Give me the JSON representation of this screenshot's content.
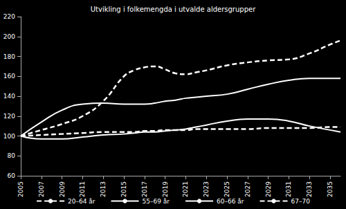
{
  "chart_data": {
    "type": "line",
    "title": "Utvikling i folkemengda i utvalde aldersgrupper",
    "x": [
      2005,
      2007,
      2009,
      2011,
      2013,
      2015,
      2016,
      2017,
      2018,
      2019,
      2020,
      2021,
      2022,
      2023,
      2025,
      2027,
      2029,
      2031,
      2033,
      2035,
      2036
    ],
    "series": [
      {
        "name": "20–64 år",
        "color": "#ffffff",
        "line_style": "dashed",
        "marker": "none",
        "values": [
          100,
          101,
          102,
          103,
          104,
          104,
          104,
          105,
          105,
          106,
          106,
          106,
          107,
          107,
          107,
          107,
          108,
          108,
          108,
          109,
          109
        ]
      },
      {
        "name": "55–69 år",
        "color": "#ffffff",
        "line_style": "solid",
        "marker": "none",
        "values": [
          100,
          114,
          126,
          132,
          133,
          132,
          132,
          132,
          133,
          135,
          136,
          138,
          139,
          140,
          142,
          147,
          152,
          156,
          158,
          158,
          158
        ]
      },
      {
        "name": "60–66 år",
        "color": "#ffffff",
        "line_style": "solid",
        "marker": "none",
        "values": [
          100,
          97,
          97,
          99,
          101,
          102,
          103,
          104,
          104,
          105,
          106,
          107,
          109,
          111,
          115,
          117,
          117,
          115,
          110,
          106,
          104
        ]
      },
      {
        "name": "67–70",
        "color": "#ffffff",
        "line_style": "dashed",
        "marker": "none",
        "values": [
          100,
          106,
          112,
          120,
          135,
          160,
          166,
          169,
          170,
          167,
          163,
          162,
          164,
          166,
          171,
          174,
          176,
          177,
          183,
          192,
          196
        ]
      }
    ],
    "xlim": [
      2005,
      2036
    ],
    "xticks": [
      2005,
      2007,
      2009,
      2011,
      2013,
      2015,
      2017,
      2019,
      2021,
      2023,
      2025,
      2027,
      2029,
      2031,
      2033,
      2035
    ],
    "ylim": [
      60,
      220
    ],
    "yticks": [
      60,
      80,
      100,
      120,
      140,
      160,
      180,
      200,
      220
    ],
    "grid": false,
    "legend": "bottom"
  }
}
